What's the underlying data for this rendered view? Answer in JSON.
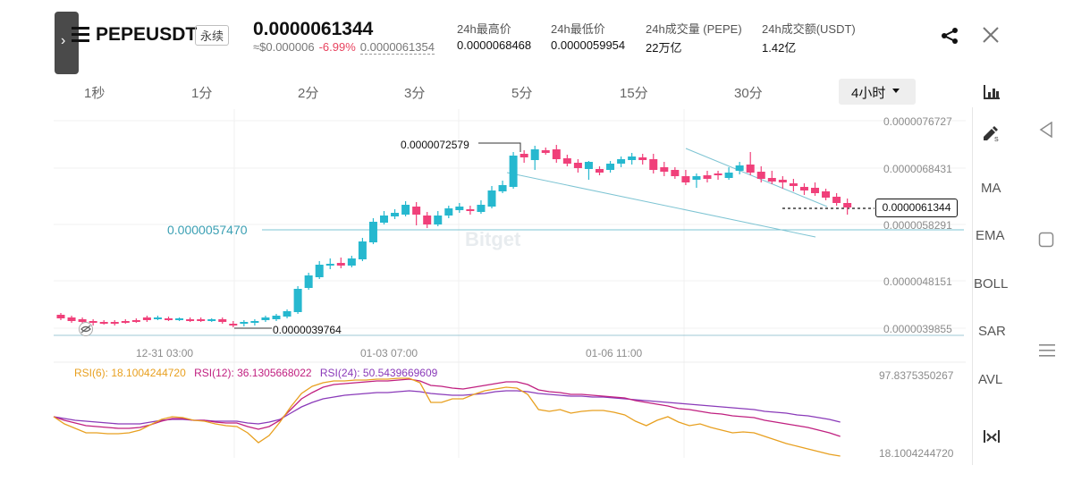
{
  "header": {
    "symbol": "PEPEUSDT",
    "contract_type": "永续",
    "last_price": "0.0000061344",
    "usd_price": "≈$0.000006",
    "change_pct": "-6.99%",
    "mark_price": "0.0000061354",
    "stats": [
      {
        "label": "24h最高价",
        "value": "0.0000068468"
      },
      {
        "label": "24h最低价",
        "value": "0.0000059954"
      },
      {
        "label": "24h成交量 (PEPE)",
        "value": "22万亿"
      },
      {
        "label": "24h成交额(USDT)",
        "value": "1.42亿"
      }
    ]
  },
  "timeframes": [
    "1秒",
    "1分",
    "2分",
    "3分",
    "5分",
    "15分",
    "30分"
  ],
  "active_timeframe": "4小时",
  "toolbar": {
    "indicators": [
      "MA",
      "EMA",
      "BOLL",
      "SAR",
      "AVL"
    ]
  },
  "chart": {
    "price_axis": [
      "0.0000076727",
      "0.0000068431",
      "0.0000058291",
      "0.0000048151",
      "0.0000039855"
    ],
    "time_axis": [
      "12-31 03:00",
      "01-03 07:00",
      "01-06 11:00"
    ],
    "high_label": "0.0000072579",
    "low_label": "0.0000039764",
    "current_price_tag": "0.0000061344",
    "horizontal_line_label": "0.0000057470",
    "watermark": "Bitget"
  },
  "rsi": {
    "rsi6": "RSI(6): 18.1004244720",
    "rsi12": "RSI(12): 36.1305668022",
    "rsi24": "RSI(24): 50.5439669609",
    "axis_top": "97.8375350267",
    "axis_bottom": "18.1004244720"
  },
  "colors": {
    "up": "#26b8cf",
    "down": "#f0407a",
    "rsi6": "#e8a020",
    "rsi12": "#c02080",
    "rsi24": "#8a3ab9",
    "line": "#7ec4d3"
  }
}
